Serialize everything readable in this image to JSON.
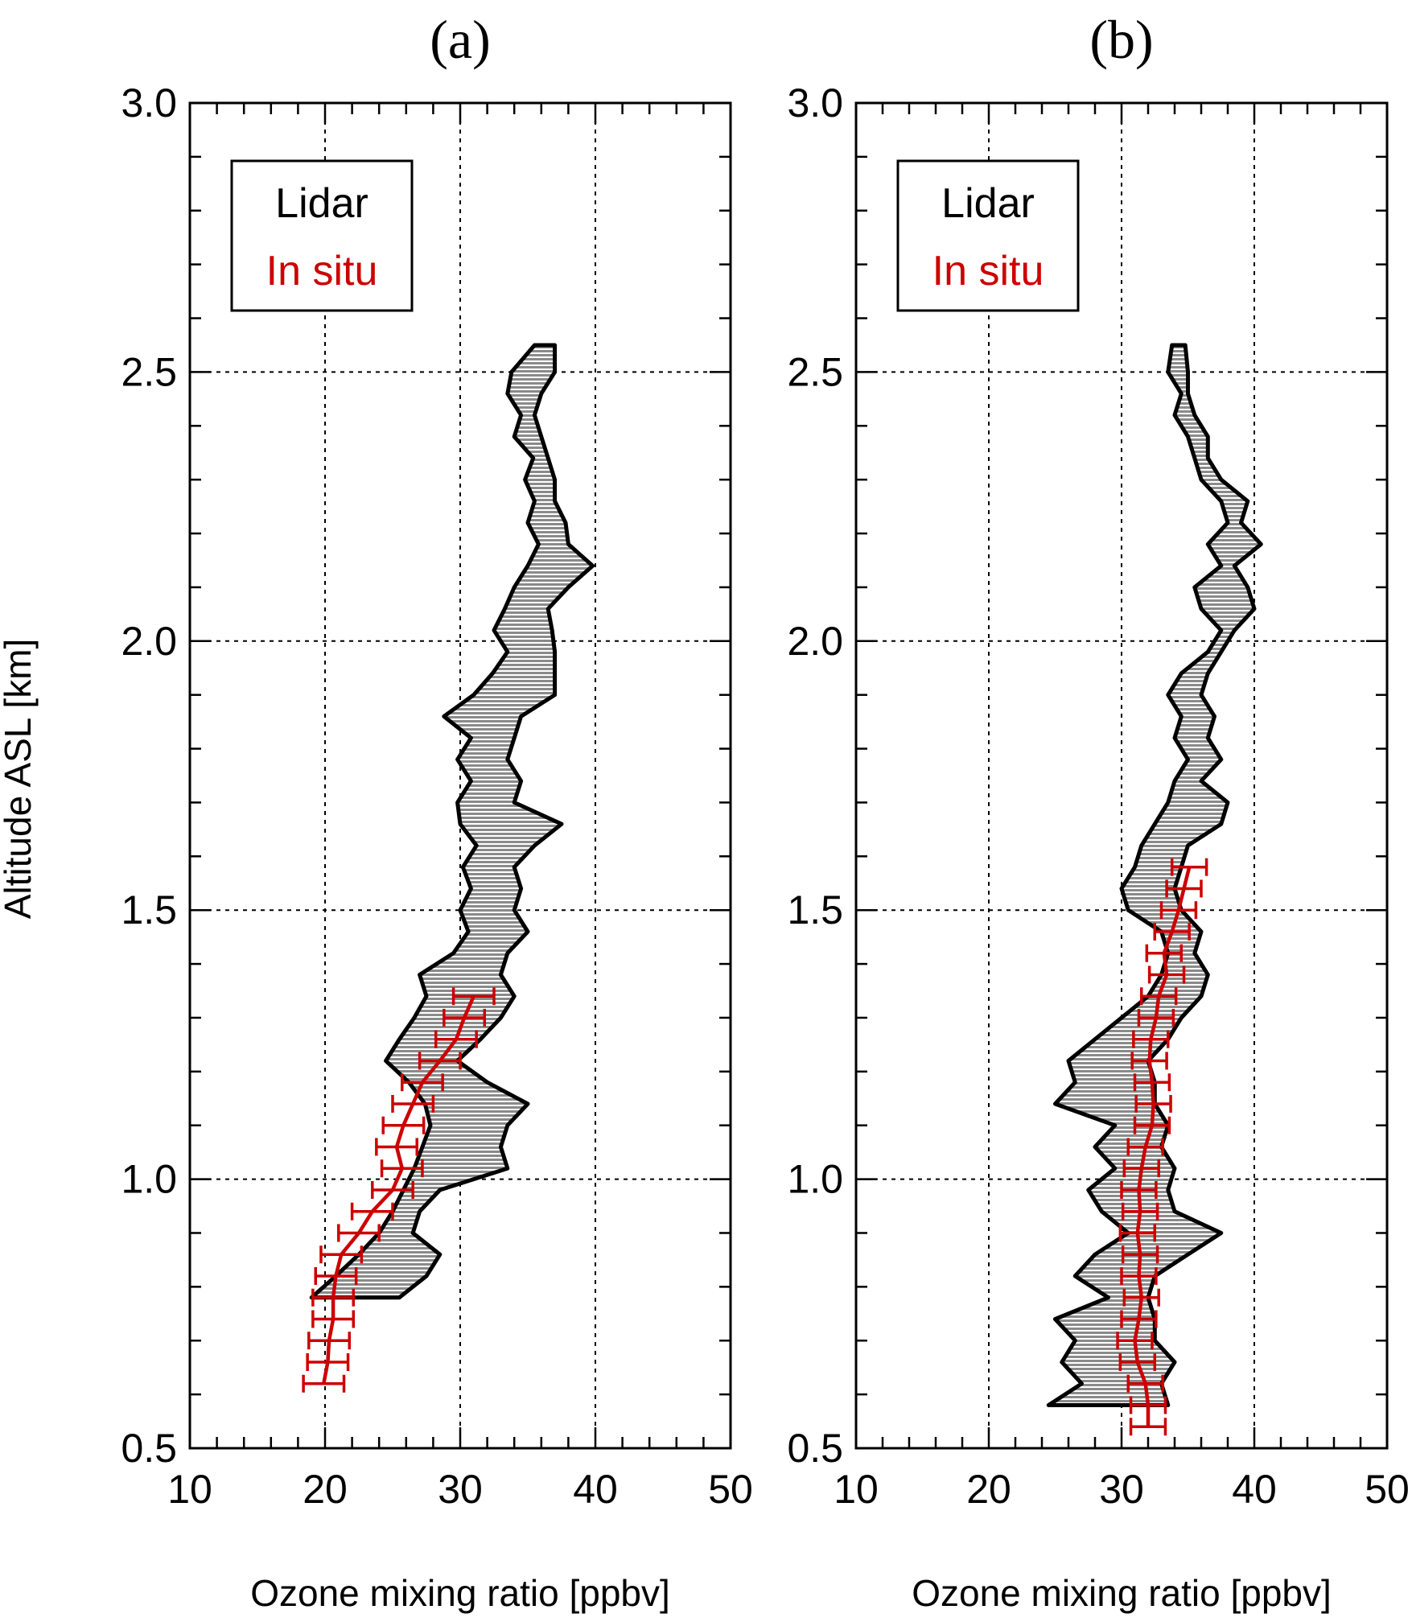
{
  "figure": {
    "ylabel": "Altitude ASL [km]"
  },
  "chart_data": [
    {
      "type": "area",
      "title": "(a)",
      "xlabel": "Ozone mixing ratio [ppbv]",
      "ylabel": "Altitude ASL [km]",
      "xlim": [
        10,
        50
      ],
      "ylim": [
        0.5,
        3.0
      ],
      "xticks": [
        10,
        20,
        30,
        40,
        50
      ],
      "yticks": [
        0.5,
        1.0,
        1.5,
        2.0,
        2.5,
        3.0
      ],
      "xtick_labels": [
        "10",
        "20",
        "30",
        "40",
        "50"
      ],
      "ytick_labels": [
        "0.5",
        "1.0",
        "1.5",
        "2.0",
        "2.5",
        "3.0"
      ],
      "grid_x": [
        20,
        30,
        40
      ],
      "grid_y": [
        1.0,
        1.5,
        2.0,
        2.5
      ],
      "legend": {
        "position": "top-left",
        "entries": [
          "Lidar",
          "In situ"
        ],
        "colors": [
          "#000000",
          "#cc0000"
        ]
      },
      "series": [
        {
          "name": "Lidar",
          "kind": "band",
          "color": "#000000",
          "fill": "#c8c8c8",
          "altitude": [
            0.78,
            0.82,
            0.86,
            0.9,
            0.94,
            0.98,
            1.02,
            1.06,
            1.1,
            1.14,
            1.18,
            1.22,
            1.26,
            1.3,
            1.34,
            1.38,
            1.42,
            1.46,
            1.5,
            1.54,
            1.58,
            1.62,
            1.66,
            1.7,
            1.74,
            1.78,
            1.82,
            1.86,
            1.9,
            1.94,
            1.98,
            2.02,
            2.06,
            2.1,
            2.14,
            2.18,
            2.22,
            2.26,
            2.3,
            2.34,
            2.38,
            2.42,
            2.46,
            2.5,
            2.55
          ],
          "lower": [
            19.0,
            20.8,
            22.5,
            24.0,
            25.0,
            25.8,
            26.6,
            27.2,
            27.8,
            27.4,
            26.2,
            24.5,
            25.5,
            26.6,
            27.5,
            27.0,
            29.5,
            30.6,
            30.0,
            30.8,
            30.2,
            31.2,
            30.0,
            29.8,
            30.8,
            29.8,
            30.8,
            28.8,
            31.0,
            32.4,
            33.5,
            32.5,
            33.3,
            34.0,
            35.0,
            35.8,
            35.0,
            35.5,
            34.8,
            35.4,
            34.0,
            34.5,
            33.5,
            33.8,
            35.5
          ],
          "upper": [
            25.5,
            27.5,
            28.5,
            26.5,
            27.0,
            28.5,
            33.5,
            33.0,
            33.5,
            35.0,
            32.0,
            29.8,
            31.5,
            33.0,
            34.0,
            33.0,
            33.5,
            35.0,
            34.0,
            34.5,
            34.0,
            35.5,
            37.5,
            34.0,
            34.5,
            33.5,
            34.0,
            34.5,
            37.0,
            37.0,
            37.0,
            36.8,
            36.5,
            38.0,
            39.8,
            38.0,
            37.8,
            37.0,
            37.0,
            36.5,
            36.0,
            35.5,
            36.0,
            37.0,
            37.0
          ]
        },
        {
          "name": "In situ",
          "kind": "errorbar",
          "color": "#cc0000",
          "altitude": [
            0.62,
            0.66,
            0.7,
            0.74,
            0.78,
            0.82,
            0.86,
            0.9,
            0.94,
            0.98,
            1.02,
            1.06,
            1.1,
            1.14,
            1.18,
            1.22,
            1.26,
            1.3,
            1.34
          ],
          "ozone": [
            19.9,
            20.2,
            20.3,
            20.6,
            20.6,
            20.8,
            21.2,
            22.5,
            23.5,
            25.0,
            25.7,
            25.3,
            25.8,
            26.5,
            27.2,
            28.5,
            29.7,
            30.3,
            31.0
          ],
          "error": [
            1.5,
            1.5,
            1.5,
            1.5,
            1.5,
            1.5,
            1.5,
            1.5,
            1.5,
            1.5,
            1.5,
            1.5,
            1.5,
            1.5,
            1.5,
            1.5,
            1.5,
            1.5,
            1.5
          ]
        }
      ]
    },
    {
      "type": "area",
      "title": "(b)",
      "xlabel": "Ozone mixing ratio [ppbv]",
      "ylabel": "Altitude ASL [km]",
      "xlim": [
        10,
        50
      ],
      "ylim": [
        0.5,
        3.0
      ],
      "xticks": [
        10,
        20,
        30,
        40,
        50
      ],
      "yticks": [
        0.5,
        1.0,
        1.5,
        2.0,
        2.5,
        3.0
      ],
      "xtick_labels": [
        "10",
        "20",
        "30",
        "40",
        "50"
      ],
      "ytick_labels": [
        "0.5",
        "1.0",
        "1.5",
        "2.0",
        "2.5",
        "3.0"
      ],
      "grid_x": [
        20,
        30,
        40
      ],
      "grid_y": [
        1.0,
        1.5,
        2.0,
        2.5
      ],
      "legend": {
        "position": "top-left",
        "entries": [
          "Lidar",
          "In situ"
        ],
        "colors": [
          "#000000",
          "#cc0000"
        ]
      },
      "series": [
        {
          "name": "Lidar",
          "kind": "band",
          "color": "#000000",
          "fill": "#c8c8c8",
          "altitude": [
            0.58,
            0.62,
            0.66,
            0.7,
            0.74,
            0.78,
            0.82,
            0.86,
            0.9,
            0.94,
            0.98,
            1.02,
            1.06,
            1.1,
            1.14,
            1.18,
            1.22,
            1.26,
            1.3,
            1.34,
            1.38,
            1.42,
            1.46,
            1.5,
            1.54,
            1.58,
            1.62,
            1.66,
            1.7,
            1.74,
            1.78,
            1.82,
            1.86,
            1.9,
            1.94,
            1.98,
            2.02,
            2.06,
            2.1,
            2.14,
            2.18,
            2.22,
            2.26,
            2.3,
            2.34,
            2.38,
            2.42,
            2.46,
            2.5,
            2.55
          ],
          "lower": [
            24.5,
            27.0,
            25.5,
            26.5,
            25.0,
            29.0,
            26.5,
            28.0,
            30.5,
            28.5,
            27.5,
            29.5,
            28.0,
            29.5,
            25.0,
            26.5,
            26.0,
            28.0,
            30.0,
            32.0,
            33.0,
            33.5,
            33.0,
            30.5,
            30.0,
            31.0,
            31.5,
            32.5,
            33.5,
            34.0,
            35.0,
            34.0,
            34.5,
            33.5,
            34.5,
            36.5,
            37.5,
            36.0,
            35.5,
            37.5,
            36.5,
            38.0,
            37.5,
            36.0,
            35.5,
            35.0,
            34.0,
            34.5,
            33.5,
            33.8
          ],
          "upper": [
            33.5,
            33.0,
            34.0,
            32.5,
            32.5,
            32.0,
            32.5,
            35.0,
            37.5,
            34.0,
            33.5,
            34.0,
            33.0,
            33.5,
            32.5,
            32.5,
            32.0,
            33.5,
            34.5,
            36.0,
            36.5,
            35.5,
            36.0,
            34.5,
            34.0,
            34.5,
            35.0,
            37.5,
            38.0,
            36.0,
            37.5,
            36.5,
            37.0,
            36.0,
            36.5,
            37.5,
            38.5,
            40.0,
            39.5,
            38.5,
            40.5,
            39.0,
            39.5,
            37.5,
            36.5,
            36.5,
            35.5,
            35.0,
            35.0,
            34.8
          ]
        },
        {
          "name": "In situ",
          "kind": "errorbar",
          "color": "#cc0000",
          "altitude": [
            0.54,
            0.58,
            0.62,
            0.66,
            0.7,
            0.74,
            0.78,
            0.82,
            0.86,
            0.9,
            0.94,
            0.98,
            1.02,
            1.06,
            1.1,
            1.14,
            1.18,
            1.22,
            1.26,
            1.3,
            1.34,
            1.38,
            1.42,
            1.46,
            1.5,
            1.54,
            1.58
          ],
          "ozone": [
            32.0,
            32.0,
            31.8,
            31.2,
            31.0,
            31.3,
            31.5,
            31.3,
            31.4,
            31.2,
            31.4,
            31.3,
            31.5,
            31.8,
            32.3,
            32.4,
            32.3,
            32.1,
            32.2,
            32.6,
            32.8,
            33.4,
            33.2,
            33.8,
            34.3,
            34.7,
            35.1
          ],
          "error": [
            1.3,
            1.3,
            1.3,
            1.3,
            1.3,
            1.3,
            1.3,
            1.3,
            1.3,
            1.3,
            1.3,
            1.3,
            1.3,
            1.3,
            1.3,
            1.3,
            1.3,
            1.3,
            1.3,
            1.3,
            1.3,
            1.3,
            1.3,
            1.3,
            1.3,
            1.3,
            1.3
          ]
        }
      ]
    }
  ]
}
